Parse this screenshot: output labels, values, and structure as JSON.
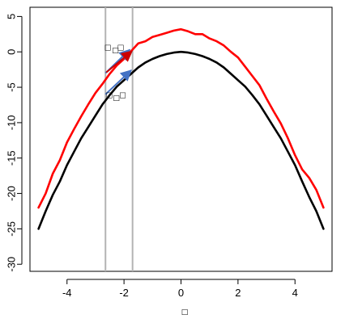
{
  "chart_data": {
    "type": "line",
    "xlabel": "□",
    "ylabel": "",
    "title": "",
    "xlim": [
      -5.3,
      5.3
    ],
    "ylim": [
      -31,
      6.3
    ],
    "x_ticks": [
      -4,
      -2,
      0,
      2,
      4
    ],
    "x_tick_labels": [
      "-4",
      "-2",
      "0",
      "2",
      "4"
    ],
    "y_ticks": [
      5,
      0,
      -5,
      -10,
      -15,
      -20,
      -25,
      -30
    ],
    "y_tick_labels": [
      "5",
      "0",
      "-5",
      "-10",
      "-15",
      "-20",
      "-25",
      "-30"
    ],
    "grid": false,
    "legend": "none",
    "vertical_lines": [
      -2.65,
      -1.7
    ],
    "vertical_line_color": "#b3b3b3",
    "series": [
      {
        "color": "#ff0000",
        "x": [
          -5.0,
          -4.75,
          -4.5,
          -4.25,
          -4.0,
          -3.75,
          -3.5,
          -3.25,
          -3.0,
          -2.75,
          -2.5,
          -2.25,
          -2.0,
          -1.75,
          -1.5,
          -1.25,
          -1.0,
          -0.75,
          -0.5,
          -0.25,
          0.0,
          0.25,
          0.5,
          0.75,
          1.0,
          1.25,
          1.5,
          1.75,
          2.0,
          2.25,
          2.5,
          2.75,
          3.0,
          3.25,
          3.5,
          3.75,
          4.0,
          4.25,
          4.5,
          4.75,
          5.0
        ],
        "y": [
          -22.0,
          -20.0,
          -17.2,
          -15.3,
          -12.8,
          -10.9,
          -9.1,
          -7.4,
          -5.8,
          -4.5,
          -3.1,
          -1.9,
          -1.0,
          0.1,
          1.2,
          1.5,
          2.1,
          2.4,
          2.7,
          3.0,
          3.2,
          2.9,
          2.5,
          2.5,
          1.9,
          1.5,
          0.9,
          0.0,
          -0.8,
          -2.1,
          -3.4,
          -4.7,
          -6.6,
          -8.4,
          -10.1,
          -12.2,
          -14.6,
          -16.6,
          -17.8,
          -19.5,
          -22.0
        ]
      },
      {
        "color": "#000000",
        "x": [
          -5.0,
          -4.75,
          -4.5,
          -4.25,
          -4.0,
          -3.75,
          -3.5,
          -3.25,
          -3.0,
          -2.75,
          -2.5,
          -2.25,
          -2.0,
          -1.75,
          -1.5,
          -1.25,
          -1.0,
          -0.75,
          -0.5,
          -0.25,
          0.0,
          0.25,
          0.5,
          0.75,
          1.0,
          1.25,
          1.5,
          1.75,
          2.0,
          2.25,
          2.5,
          2.75,
          3.0,
          3.25,
          3.5,
          3.75,
          4.0,
          4.25,
          4.5,
          4.75,
          5.0
        ],
        "y": [
          -25.0,
          -22.5,
          -20.2,
          -18.3,
          -16.0,
          -14.1,
          -12.2,
          -10.6,
          -9.0,
          -7.4,
          -6.1,
          -4.9,
          -4.0,
          -3.1,
          -2.2,
          -1.5,
          -1.0,
          -0.6,
          -0.3,
          -0.1,
          0.0,
          -0.1,
          -0.3,
          -0.6,
          -1.0,
          -1.5,
          -2.2,
          -3.1,
          -4.0,
          -4.9,
          -6.1,
          -7.4,
          -9.0,
          -10.6,
          -12.2,
          -14.1,
          -16.0,
          -18.3,
          -20.5,
          -22.5,
          -25.0
        ]
      }
    ],
    "tangent_arrows": [
      {
        "x0": -2.65,
        "y0": -6.0,
        "x1": -1.75,
        "y1": -2.6,
        "color": "#4472c4"
      },
      {
        "x0": -2.65,
        "y0": -3.0,
        "x1": -1.8,
        "y1": 0.3,
        "color": "#4472c4"
      },
      {
        "x0": -2.62,
        "y0": -2.9,
        "x1": -1.72,
        "y1": 0.1,
        "color": "#cc0000"
      }
    ],
    "annotations": [
      {
        "text": "□",
        "x": -2.57,
        "y": 0.3
      },
      {
        "text": "□",
        "x": -2.3,
        "y": -0.1,
        "small": true
      },
      {
        "text": "□",
        "x": -2.12,
        "y": 0.3
      },
      {
        "text": "□",
        "x": -2.52,
        "y": -6.4
      },
      {
        "text": "□",
        "x": -2.27,
        "y": -6.8,
        "small": true
      },
      {
        "text": "□",
        "x": -2.05,
        "y": -6.4
      }
    ]
  }
}
